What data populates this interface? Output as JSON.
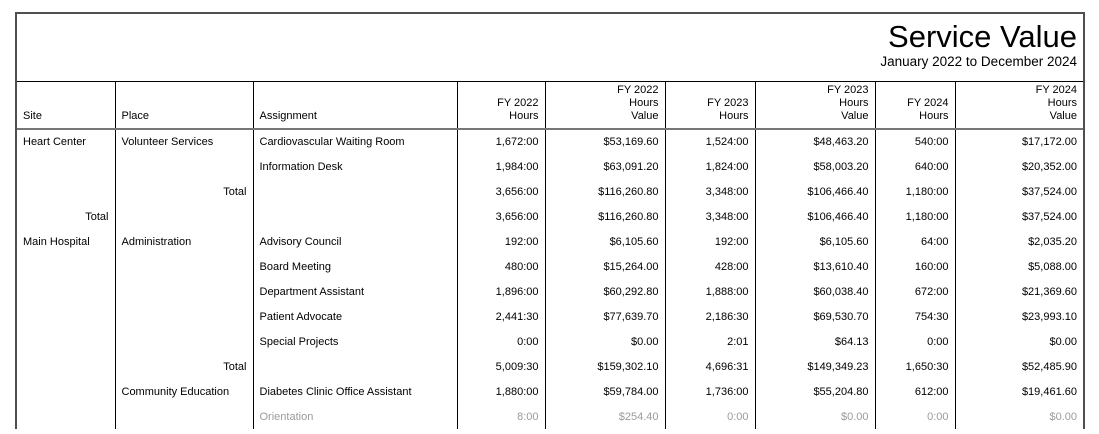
{
  "report": {
    "title": "Service Value",
    "subtitle": "January 2022 to December 2024"
  },
  "table": {
    "columns": [
      {
        "key": "site",
        "label": "Site",
        "align": "left"
      },
      {
        "key": "place",
        "label": "Place",
        "align": "left"
      },
      {
        "key": "assignment",
        "label": "Assignment",
        "align": "left"
      },
      {
        "key": "fy2022-hours",
        "label": "FY 2022\nHours",
        "align": "right"
      },
      {
        "key": "fy2022-value",
        "label": "FY 2022\nHours\nValue",
        "align": "right"
      },
      {
        "key": "fy2023-hours",
        "label": "FY 2023\nHours",
        "align": "right"
      },
      {
        "key": "fy2023-value",
        "label": "FY 2023\nHours\nValue",
        "align": "right"
      },
      {
        "key": "fy2024-hours",
        "label": "FY 2024\nHours",
        "align": "right"
      },
      {
        "key": "fy2024-value",
        "label": "FY 2024\nHours\nValue",
        "align": "right"
      }
    ],
    "rows": [
      {
        "type": "detail",
        "muted": false,
        "cells": [
          "Heart Center",
          "Volunteer Services",
          "Cardiovascular Waiting Room",
          "1,672:00",
          "$53,169.60",
          "1,524:00",
          "$48,463.20",
          "540:00",
          "$17,172.00"
        ]
      },
      {
        "type": "detail",
        "muted": false,
        "cells": [
          "",
          "",
          "Information Desk",
          "1,984:00",
          "$63,091.20",
          "1,824:00",
          "$58,003.20",
          "640:00",
          "$20,352.00"
        ]
      },
      {
        "type": "place-total",
        "muted": false,
        "cells": [
          "",
          "Total",
          "",
          "3,656:00",
          "$116,260.80",
          "3,348:00",
          "$106,466.40",
          "1,180:00",
          "$37,524.00"
        ]
      },
      {
        "type": "site-total",
        "muted": false,
        "cells": [
          "Total",
          "",
          "",
          "3,656:00",
          "$116,260.80",
          "3,348:00",
          "$106,466.40",
          "1,180:00",
          "$37,524.00"
        ]
      },
      {
        "type": "detail",
        "muted": false,
        "cells": [
          "Main Hospital",
          "Administration",
          "Advisory Council",
          "192:00",
          "$6,105.60",
          "192:00",
          "$6,105.60",
          "64:00",
          "$2,035.20"
        ]
      },
      {
        "type": "detail",
        "muted": false,
        "cells": [
          "",
          "",
          "Board Meeting",
          "480:00",
          "$15,264.00",
          "428:00",
          "$13,610.40",
          "160:00",
          "$5,088.00"
        ]
      },
      {
        "type": "detail",
        "muted": false,
        "cells": [
          "",
          "",
          "Department Assistant",
          "1,896:00",
          "$60,292.80",
          "1,888:00",
          "$60,038.40",
          "672:00",
          "$21,369.60"
        ]
      },
      {
        "type": "detail",
        "muted": false,
        "cells": [
          "",
          "",
          "Patient Advocate",
          "2,441:30",
          "$77,639.70",
          "2,186:30",
          "$69,530.70",
          "754:30",
          "$23,993.10"
        ]
      },
      {
        "type": "detail",
        "muted": false,
        "cells": [
          "",
          "",
          "Special Projects",
          "0:00",
          "$0.00",
          "2:01",
          "$64.13",
          "0:00",
          "$0.00"
        ]
      },
      {
        "type": "place-total",
        "muted": false,
        "cells": [
          "",
          "Total",
          "",
          "5,009:30",
          "$159,302.10",
          "4,696:31",
          "$149,349.23",
          "1,650:30",
          "$52,485.90"
        ]
      },
      {
        "type": "detail",
        "muted": false,
        "cells": [
          "",
          "Community Education",
          "Diabetes Clinic Office Assistant",
          "1,880:00",
          "$59,784.00",
          "1,736:00",
          "$55,204.80",
          "612:00",
          "$19,461.60"
        ]
      },
      {
        "type": "detail",
        "muted": true,
        "cells": [
          "",
          "",
          "Orientation",
          "8:00",
          "$254.40",
          "0:00",
          "$0.00",
          "0:00",
          "$0.00"
        ]
      }
    ]
  },
  "colors": {
    "text": "#000000",
    "muted_text": "#9b9b9b",
    "grid_line": "#000000",
    "outer_border": "#4f4f4f",
    "header_separator": "#777777",
    "background": "#ffffff"
  }
}
